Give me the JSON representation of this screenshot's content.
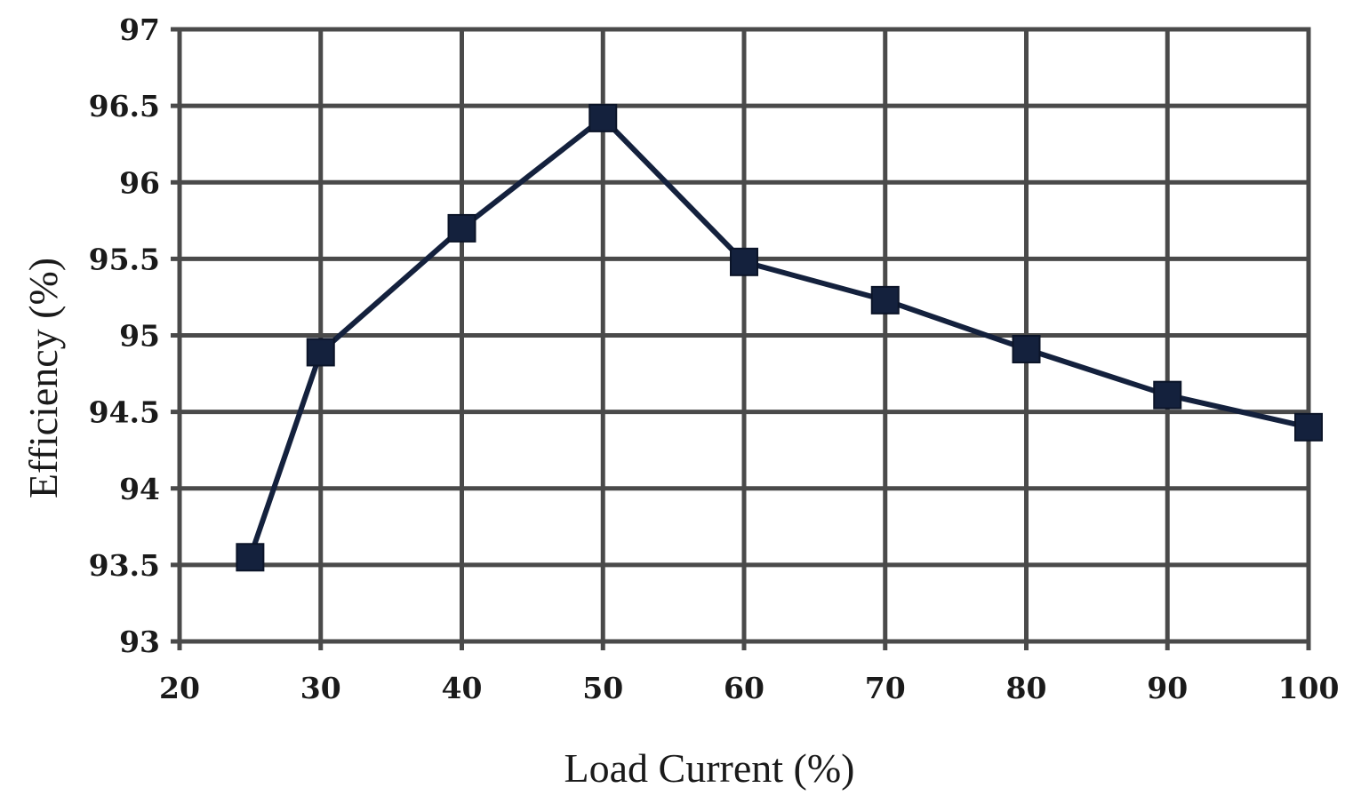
{
  "chart_data": {
    "type": "line",
    "title": "",
    "xlabel": "Load Current (%)",
    "ylabel": "Efficiency (%)",
    "xlim": [
      20,
      100
    ],
    "ylim": [
      93,
      97
    ],
    "xticks": [
      "20",
      "30",
      "40",
      "50",
      "60",
      "70",
      "80",
      "90",
      "100"
    ],
    "yticks": [
      "93",
      "93.5",
      "94",
      "94.5",
      "95",
      "95.5",
      "96",
      "96.5",
      "97"
    ],
    "grid": true,
    "legend": "none",
    "series": [
      {
        "x": [
          25,
          30,
          40,
          50,
          60,
          70,
          80,
          90,
          100
        ],
        "y": [
          93.55,
          94.89,
          95.7,
          96.42,
          95.48,
          95.23,
          94.91,
          94.61,
          94.4
        ],
        "color": "#14213d",
        "marker": "square"
      }
    ]
  }
}
